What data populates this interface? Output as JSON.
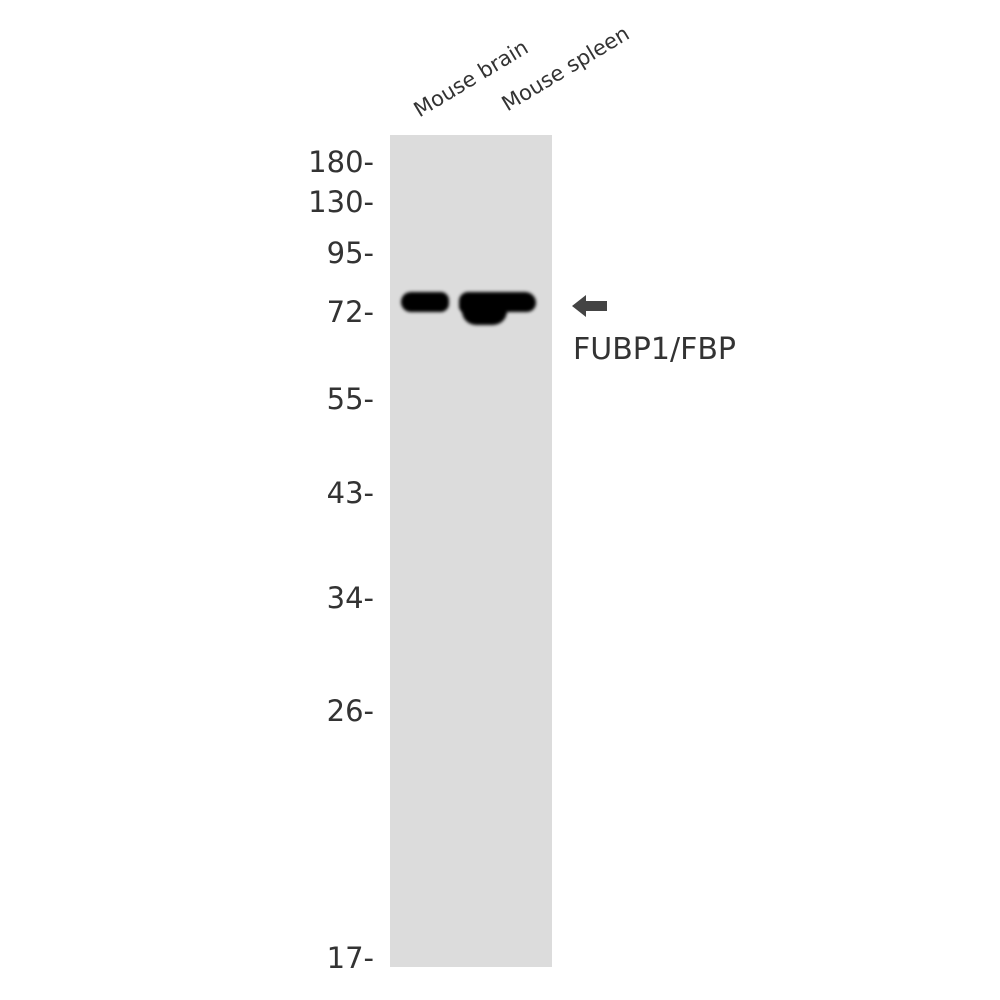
{
  "lanes": [
    {
      "label": "Mouse brain"
    },
    {
      "label": "Mouse spleen"
    }
  ],
  "markers": [
    "180-",
    "130-",
    "95-",
    "72-",
    "55-",
    "43-",
    "34-",
    "26-",
    "17-"
  ],
  "marker_kda": [
    180,
    130,
    95,
    72,
    55,
    43,
    34,
    26,
    17
  ],
  "target": {
    "label": "FUBP1/FBP",
    "icon": "arrow-left-icon"
  },
  "colors": {
    "membrane": "#dcdcdc",
    "band": "#000000",
    "text": "#333333",
    "arrow": "#444444"
  }
}
